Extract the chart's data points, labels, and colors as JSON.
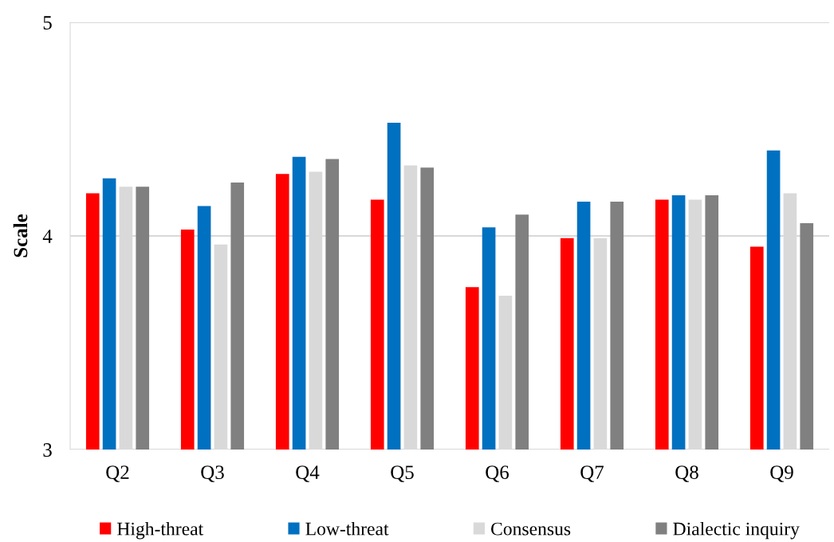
{
  "chart_data": {
    "type": "bar",
    "ylabel": "Scale",
    "categories": [
      "Q2",
      "Q3",
      "Q4",
      "Q5",
      "Q6",
      "Q7",
      "Q8",
      "Q9"
    ],
    "series": [
      {
        "name": "High-threat",
        "color": "#ff0000",
        "values": [
          4.2,
          4.03,
          4.29,
          4.17,
          3.76,
          3.99,
          4.17,
          3.95
        ]
      },
      {
        "name": "Low-threat",
        "color": "#0070c0",
        "values": [
          4.27,
          4.14,
          4.37,
          4.53,
          4.04,
          4.16,
          4.19,
          4.4
        ]
      },
      {
        "name": "Consensus",
        "color": "#d9d9d9",
        "values": [
          4.23,
          3.96,
          4.3,
          4.33,
          3.72,
          3.99,
          4.17,
          4.2
        ]
      },
      {
        "name": "Dialectic inquiry",
        "color": "#808080",
        "values": [
          4.23,
          4.25,
          4.36,
          4.32,
          4.1,
          4.16,
          4.19,
          4.06
        ]
      }
    ],
    "ylim": [
      3,
      5
    ],
    "yticks": [
      3,
      4,
      5
    ],
    "grid": "y",
    "legend": "bottom"
  }
}
